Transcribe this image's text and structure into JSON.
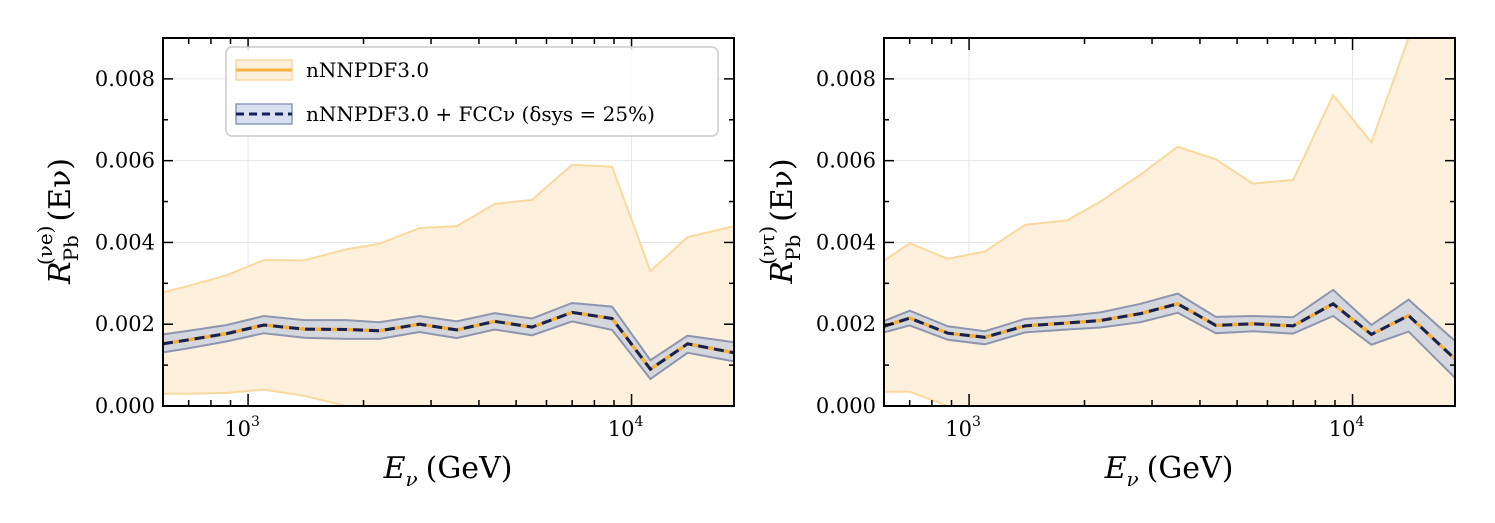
{
  "chart_data": [
    {
      "type": "line",
      "panel": "left",
      "xscale": "log",
      "xlim": [
        600,
        18500
      ],
      "ylim": [
        0,
        0.009
      ],
      "xlabel": {
        "main": "E",
        "sub": "ν",
        "unit": "(GeV)"
      },
      "ylabel": {
        "main": "R",
        "sub": "Pb",
        "sup": "(νe)",
        "arg": "(Eν)"
      },
      "ytick_labels": [
        "0.000",
        "0.002",
        "0.004",
        "0.006",
        "0.008"
      ],
      "yticks": [
        0,
        0.002,
        0.004,
        0.006,
        0.008
      ],
      "xtick_labels": [
        {
          "base": "10",
          "exp": "3"
        },
        {
          "base": "10",
          "exp": "4"
        }
      ],
      "xticks": [
        1000,
        10000
      ],
      "legend": {
        "position": "top-left",
        "entries": [
          {
            "label": "nNNPDF3.0",
            "color": "#F5B03E",
            "fill": "#FDF0DC"
          },
          {
            "label": "nNNPDF3.0 + FCCν (δsys = 25%)",
            "color": "#12235A",
            "fill": "#D9E0F0",
            "edge": "#8E9AB8"
          }
        ]
      },
      "x": [
        600,
        700,
        880,
        1100,
        1400,
        1800,
        2200,
        2800,
        3500,
        4400,
        5500,
        7000,
        8900,
        11200,
        14000,
        18500
      ],
      "series": [
        {
          "name": "nNNPDF3.0 central",
          "values": [
            0.00152,
            0.00162,
            0.00177,
            0.00198,
            0.00188,
            0.00187,
            0.00184,
            0.002,
            0.00186,
            0.00207,
            0.00193,
            0.00229,
            0.00214,
            0.0009,
            0.00152,
            0.0013
          ]
        },
        {
          "name": "nNNPDF3.0 upper",
          "values": [
            0.00278,
            0.00294,
            0.0032,
            0.00357,
            0.00356,
            0.00383,
            0.00397,
            0.00435,
            0.0044,
            0.00494,
            0.00504,
            0.0059,
            0.00585,
            0.0033,
            0.00413,
            0.0044
          ]
        },
        {
          "name": "nNNPDF3.0 lower",
          "values": [
            0.0003,
            0.0003,
            0.00032,
            0.0004,
            0.00025,
            0.0,
            0.0,
            0.0,
            0.0,
            0.0,
            0.0,
            0.0,
            0.0,
            0.0,
            0.0,
            0.0
          ]
        },
        {
          "name": "FCCν upper",
          "values": [
            0.00175,
            0.00184,
            0.00198,
            0.0022,
            0.0021,
            0.0021,
            0.00205,
            0.0022,
            0.00207,
            0.00227,
            0.00214,
            0.00252,
            0.00243,
            0.00112,
            0.00172,
            0.00156
          ]
        },
        {
          "name": "FCCν lower",
          "values": [
            0.00131,
            0.00141,
            0.00158,
            0.00178,
            0.00167,
            0.00164,
            0.00164,
            0.00181,
            0.00166,
            0.00187,
            0.00173,
            0.00207,
            0.00186,
            0.00066,
            0.0013,
            0.00109
          ]
        }
      ]
    },
    {
      "type": "line",
      "panel": "right",
      "xscale": "log",
      "xlim": [
        600,
        18500
      ],
      "ylim": [
        0,
        0.009
      ],
      "xlabel": {
        "main": "E",
        "sub": "ν",
        "unit": "(GeV)"
      },
      "ylabel": {
        "main": "R",
        "sub": "Pb",
        "sup": "(ντ)",
        "arg": "(Eν)"
      },
      "ytick_labels": [
        "0.000",
        "0.002",
        "0.004",
        "0.006",
        "0.008"
      ],
      "yticks": [
        0,
        0.002,
        0.004,
        0.006,
        0.008
      ],
      "xtick_labels": [
        {
          "base": "10",
          "exp": "3"
        },
        {
          "base": "10",
          "exp": "4"
        }
      ],
      "xticks": [
        1000,
        10000
      ],
      "x": [
        600,
        700,
        880,
        1100,
        1400,
        1800,
        2200,
        2800,
        3500,
        4400,
        5500,
        7000,
        8900,
        11200,
        14000,
        18500
      ],
      "series": [
        {
          "name": "nNNPDF3.0 central",
          "values": [
            0.00195,
            0.00215,
            0.00178,
            0.00168,
            0.00196,
            0.00203,
            0.00209,
            0.00226,
            0.0025,
            0.00197,
            0.00201,
            0.00196,
            0.0025,
            0.00175,
            0.00221,
            0.00115
          ]
        },
        {
          "name": "nNNPDF3.0 upper",
          "values": [
            0.00355,
            0.00398,
            0.0036,
            0.00378,
            0.00443,
            0.00454,
            0.005,
            0.00566,
            0.00634,
            0.00603,
            0.00544,
            0.00553,
            0.0076,
            0.00645,
            0.009,
            0.009
          ]
        },
        {
          "name": "nNNPDF3.0 lower",
          "values": [
            0.00035,
            0.00035,
            0.0,
            0.0,
            0.0,
            0.0,
            0.0,
            0.0,
            0.0,
            0.0,
            0.0,
            0.0,
            0.0,
            0.0,
            0.0,
            0.0
          ]
        },
        {
          "name": "FCCν upper",
          "values": [
            0.00208,
            0.00233,
            0.00195,
            0.00183,
            0.00213,
            0.0022,
            0.00229,
            0.0025,
            0.00275,
            0.00218,
            0.0022,
            0.00217,
            0.00284,
            0.00198,
            0.0026,
            0.00159
          ]
        },
        {
          "name": "FCCν lower",
          "values": [
            0.0018,
            0.00197,
            0.00162,
            0.00151,
            0.0018,
            0.00187,
            0.00192,
            0.00205,
            0.00228,
            0.00178,
            0.00183,
            0.00177,
            0.0022,
            0.0015,
            0.00182,
            0.00069
          ]
        }
      ]
    }
  ]
}
